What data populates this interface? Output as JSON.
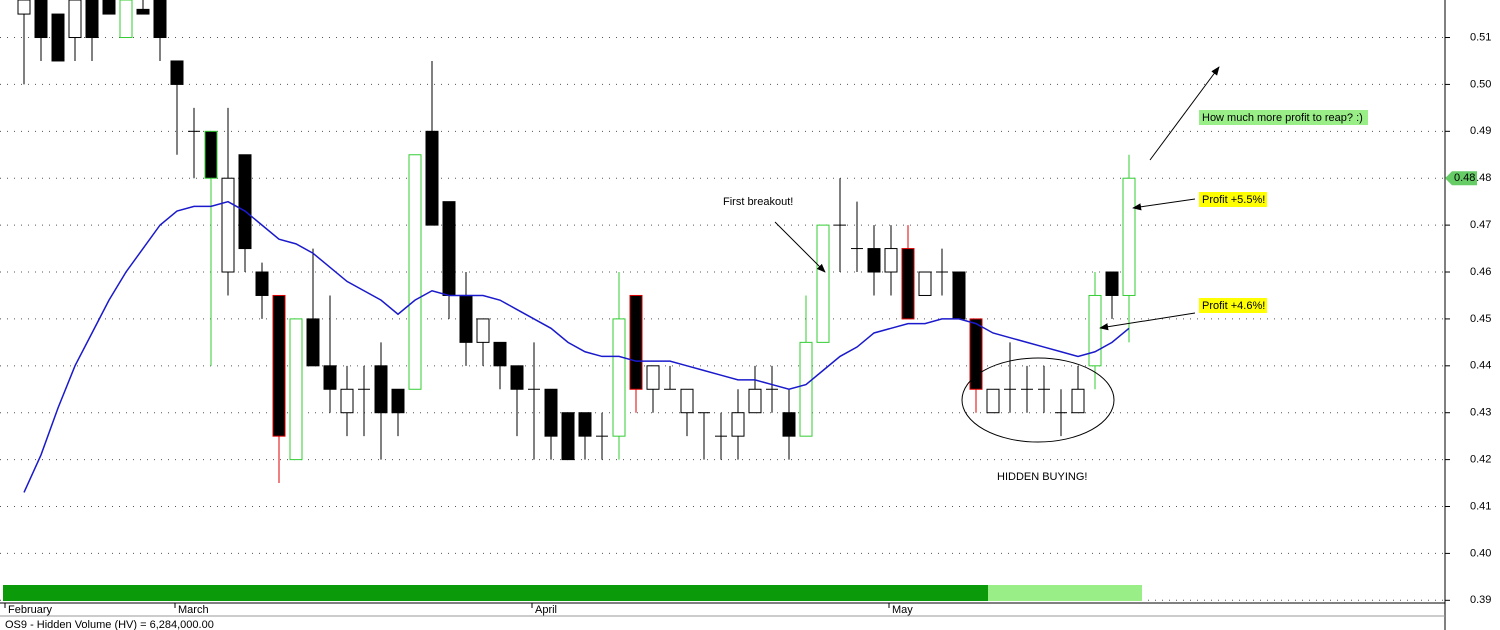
{
  "chart_data": {
    "type": "candlestick",
    "categories": [
      "February",
      null,
      null,
      null,
      null,
      null,
      null,
      null,
      null,
      "March",
      null,
      null,
      null,
      null,
      null,
      null,
      null,
      null,
      null,
      null,
      null,
      null,
      null,
      null,
      null,
      null,
      null,
      null,
      null,
      null,
      "April",
      null,
      null,
      null,
      null,
      null,
      null,
      null,
      null,
      null,
      null,
      null,
      null,
      null,
      null,
      null,
      null,
      null,
      null,
      null,
      null,
      "May",
      null,
      null,
      null,
      null,
      null,
      null,
      null,
      null,
      null,
      null,
      null,
      null,
      null,
      null
    ],
    "open": [
      0.515,
      0.518,
      0.515,
      0.51,
      0.518,
      0.518,
      0.51,
      0.516,
      0.518,
      0.505,
      0.49,
      0.49,
      0.46,
      0.485,
      0.46,
      0.455,
      0.42,
      0.45,
      0.44,
      0.43,
      0.435,
      0.44,
      0.435,
      0.435,
      0.49,
      0.475,
      0.455,
      0.445,
      0.445,
      0.44,
      0.435,
      0.435,
      0.43,
      0.43,
      0.425,
      0.425,
      0.455,
      0.435,
      0.435,
      0.43,
      0.43,
      0.425,
      0.425,
      0.43,
      0.435,
      0.43,
      0.425,
      0.445,
      0.47,
      0.465,
      0.465,
      0.46,
      0.465,
      0.455,
      0.46,
      0.46,
      0.45,
      0.43,
      0.435,
      0.435,
      0.435,
      0.43,
      0.43,
      0.44,
      0.46,
      0.455
    ],
    "high": [
      0.518,
      0.518,
      0.515,
      0.518,
      0.518,
      0.518,
      0.518,
      0.518,
      0.518,
      0.505,
      0.495,
      0.49,
      0.495,
      0.485,
      0.462,
      0.455,
      0.45,
      0.465,
      0.455,
      0.44,
      0.44,
      0.445,
      0.435,
      0.485,
      0.505,
      0.475,
      0.46,
      0.45,
      0.445,
      0.44,
      0.445,
      0.435,
      0.43,
      0.43,
      0.43,
      0.46,
      0.455,
      0.44,
      0.44,
      0.435,
      0.43,
      0.43,
      0.435,
      0.44,
      0.44,
      0.435,
      0.455,
      0.47,
      0.48,
      0.475,
      0.47,
      0.47,
      0.47,
      0.46,
      0.465,
      0.46,
      0.45,
      0.435,
      0.445,
      0.44,
      0.44,
      0.435,
      0.44,
      0.46,
      0.46,
      0.485
    ],
    "low": [
      0.5,
      0.505,
      0.505,
      0.505,
      0.505,
      0.515,
      0.51,
      0.515,
      0.505,
      0.485,
      0.48,
      0.44,
      0.455,
      0.46,
      0.45,
      0.415,
      0.42,
      0.44,
      0.43,
      0.425,
      0.425,
      0.42,
      0.425,
      0.435,
      0.47,
      0.45,
      0.44,
      0.44,
      0.435,
      0.425,
      0.42,
      0.42,
      0.42,
      0.42,
      0.42,
      0.42,
      0.43,
      0.43,
      0.435,
      0.425,
      0.42,
      0.42,
      0.42,
      0.43,
      0.43,
      0.42,
      0.425,
      0.445,
      0.46,
      0.46,
      0.455,
      0.455,
      0.45,
      0.455,
      0.455,
      0.45,
      0.43,
      0.43,
      0.43,
      0.43,
      0.43,
      0.425,
      0.43,
      0.435,
      0.45,
      0.445
    ],
    "close": [
      0.518,
      0.51,
      0.505,
      0.518,
      0.51,
      0.515,
      0.518,
      0.515,
      0.51,
      0.5,
      0.49,
      0.48,
      0.48,
      0.465,
      0.455,
      0.425,
      0.45,
      0.44,
      0.435,
      0.435,
      0.435,
      0.43,
      0.43,
      0.485,
      0.47,
      0.455,
      0.445,
      0.45,
      0.44,
      0.435,
      0.435,
      0.425,
      0.42,
      0.425,
      0.425,
      0.45,
      0.435,
      0.44,
      0.435,
      0.435,
      0.43,
      0.425,
      0.43,
      0.435,
      0.435,
      0.425,
      0.445,
      0.47,
      0.47,
      0.465,
      0.46,
      0.465,
      0.45,
      0.46,
      0.46,
      0.45,
      0.435,
      0.435,
      0.435,
      0.435,
      0.435,
      0.43,
      0.435,
      0.455,
      0.455,
      0.48
    ],
    "edge_colors": [
      "#000000",
      "#000000",
      "#000000",
      "#000000",
      "#000000",
      "#000000",
      "#33cc33",
      "#000000",
      "#000000",
      "#000000",
      "#000000",
      "#33cc33",
      "#000000",
      "#000000",
      "#000000",
      "#dd0000",
      "#33cc33",
      "#000000",
      "#000000",
      "#000000",
      "#000000",
      "#000000",
      "#000000",
      "#33cc33",
      "#000000",
      "#000000",
      "#000000",
      "#000000",
      "#000000",
      "#000000",
      "#000000",
      "#000000",
      "#000000",
      "#000000",
      "#000000",
      "#33cc33",
      "#dd0000",
      "#000000",
      "#000000",
      "#000000",
      "#000000",
      "#000000",
      "#000000",
      "#000000",
      "#000000",
      "#000000",
      "#33cc33",
      "#33cc33",
      "#000000",
      "#000000",
      "#000000",
      "#000000",
      "#dd0000",
      "#000000",
      "#000000",
      "#000000",
      "#dd0000",
      "#000000",
      "#000000",
      "#000000",
      "#000000",
      "#000000",
      "#000000",
      "#33cc33",
      "#000000",
      "#33cc33"
    ],
    "moving_average": {
      "color": "#1a1acc",
      "values": [
        0.413,
        0.421,
        0.431,
        0.44,
        0.447,
        0.454,
        0.46,
        0.465,
        0.47,
        0.473,
        0.474,
        0.474,
        0.475,
        0.473,
        0.47,
        0.467,
        0.466,
        0.464,
        0.461,
        0.458,
        0.456,
        0.454,
        0.451,
        0.454,
        0.456,
        0.455,
        0.455,
        0.455,
        0.454,
        0.452,
        0.45,
        0.448,
        0.445,
        0.443,
        0.442,
        0.442,
        0.441,
        0.441,
        0.441,
        0.44,
        0.439,
        0.438,
        0.437,
        0.437,
        0.436,
        0.435,
        0.436,
        0.439,
        0.442,
        0.444,
        0.447,
        0.448,
        0.449,
        0.449,
        0.45,
        0.45,
        0.449,
        0.447,
        0.446,
        0.445,
        0.444,
        0.443,
        0.442,
        0.443,
        0.445,
        0.448
      ]
    },
    "ylim": [
      0.389,
      0.518
    ],
    "yticks": [
      0.39,
      {
        "value": 0.4,
        "label": "0.40"
      },
      0.41,
      0.42,
      0.43,
      0.44,
      0.45,
      0.46,
      0.47,
      0.48,
      0.49,
      {
        "value": 0.5,
        "label": "0.50"
      },
      0.51
    ],
    "grid": true,
    "last_price": 0.48,
    "last_price_color": "#66cc66",
    "annotations": [
      "First breakout!",
      "HIDDEN BUYING!",
      "How much more profit to reap? :)",
      "Profit +5.5%!",
      "Profit +4.6%!"
    ],
    "indicator_label": "OS9 - Hidden Volume (HV) = 6,284,000.00"
  }
}
